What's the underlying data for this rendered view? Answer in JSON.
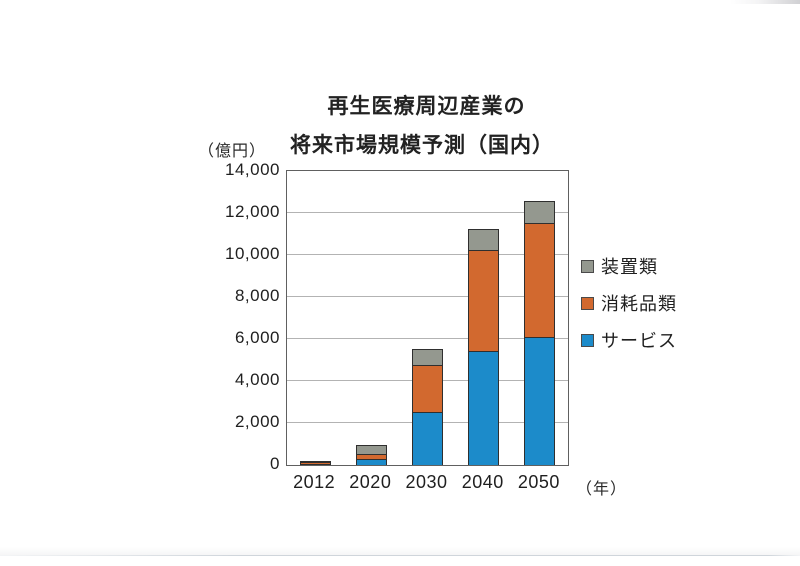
{
  "title": {
    "line1": "再生医療周辺産業の",
    "line2": "将来市場規模予測（国内）"
  },
  "y_axis": {
    "unit_label": "（億円）",
    "ticks": [
      "14,000",
      "12,000",
      "10,000",
      "8,000",
      "6,000",
      "4,000",
      "2,000",
      "0"
    ]
  },
  "x_axis": {
    "unit_label": "（年）"
  },
  "legend": {
    "items": [
      {
        "label": "装置類",
        "color": "#94988f"
      },
      {
        "label": "消耗品類",
        "color": "#d2692f"
      },
      {
        "label": "サービス",
        "color": "#1c8bca"
      }
    ]
  },
  "chart_data": {
    "type": "bar",
    "stacked": true,
    "title": "再生医療周辺産業の将来市場規模予測（国内）",
    "xlabel": "（年）",
    "ylabel": "（億円）",
    "categories": [
      "2012",
      "2020",
      "2030",
      "2040",
      "2050"
    ],
    "series": [
      {
        "name": "サービス",
        "color": "#1c8bca",
        "values": [
          40,
          280,
          2500,
          5450,
          6100
        ]
      },
      {
        "name": "消耗品類",
        "color": "#d2692f",
        "values": [
          80,
          250,
          2250,
          4800,
          5450
        ]
      },
      {
        "name": "装置類",
        "color": "#94988f",
        "values": [
          50,
          420,
          750,
          1000,
          1050
        ]
      }
    ],
    "totals": [
      170,
      950,
      5500,
      11250,
      12600
    ],
    "ylim": [
      0,
      14000
    ],
    "ytick_step": 2000,
    "grid": true,
    "legend_position": "right",
    "stack_order_bottom_to_top": [
      "サービス",
      "消耗品類",
      "装置類"
    ]
  },
  "colors": {
    "service_blue": "#1c8bca",
    "consumables_orange": "#d2692f",
    "equipment_gray": "#94988f",
    "gridline": "#b3b3b3",
    "plot_border": "#606060"
  }
}
